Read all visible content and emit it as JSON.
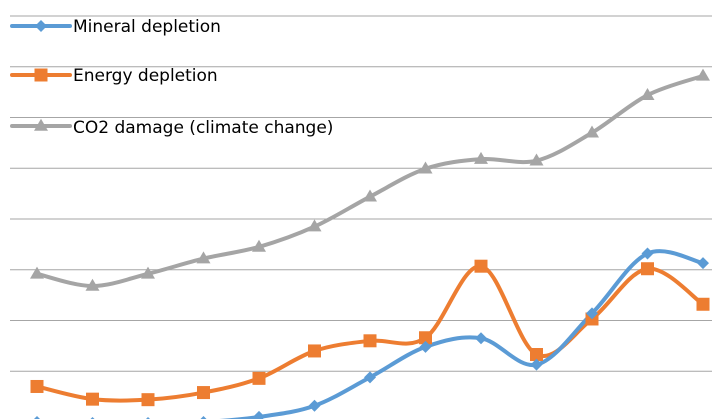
{
  "chart_data": {
    "type": "line",
    "smooth": true,
    "grid": true,
    "legend_position": "top-left",
    "x": [
      1,
      2,
      3,
      4,
      5,
      6,
      7,
      8,
      9,
      10,
      11,
      12,
      13
    ],
    "ylim": [
      0,
      8
    ],
    "series": [
      {
        "name": "Mineral depletion",
        "color": "#5b9bd5",
        "marker": "diamond",
        "values": [
          0.0,
          -0.02,
          -0.02,
          0.0,
          0.1,
          0.32,
          0.88,
          1.48,
          1.65,
          1.13,
          2.14,
          3.32,
          3.13
        ]
      },
      {
        "name": "Energy depletion",
        "color": "#ed7d31",
        "marker": "square",
        "values": [
          0.7,
          0.45,
          0.44,
          0.58,
          0.86,
          1.4,
          1.6,
          1.66,
          3.07,
          1.33,
          2.03,
          3.02,
          2.32
        ]
      },
      {
        "name": "CO2 damage (climate change)",
        "color": "#a5a5a5",
        "marker": "triangle",
        "values": [
          2.92,
          2.68,
          2.92,
          3.22,
          3.45,
          3.85,
          4.44,
          4.99,
          5.18,
          5.15,
          5.7,
          6.44,
          6.82
        ]
      }
    ]
  }
}
